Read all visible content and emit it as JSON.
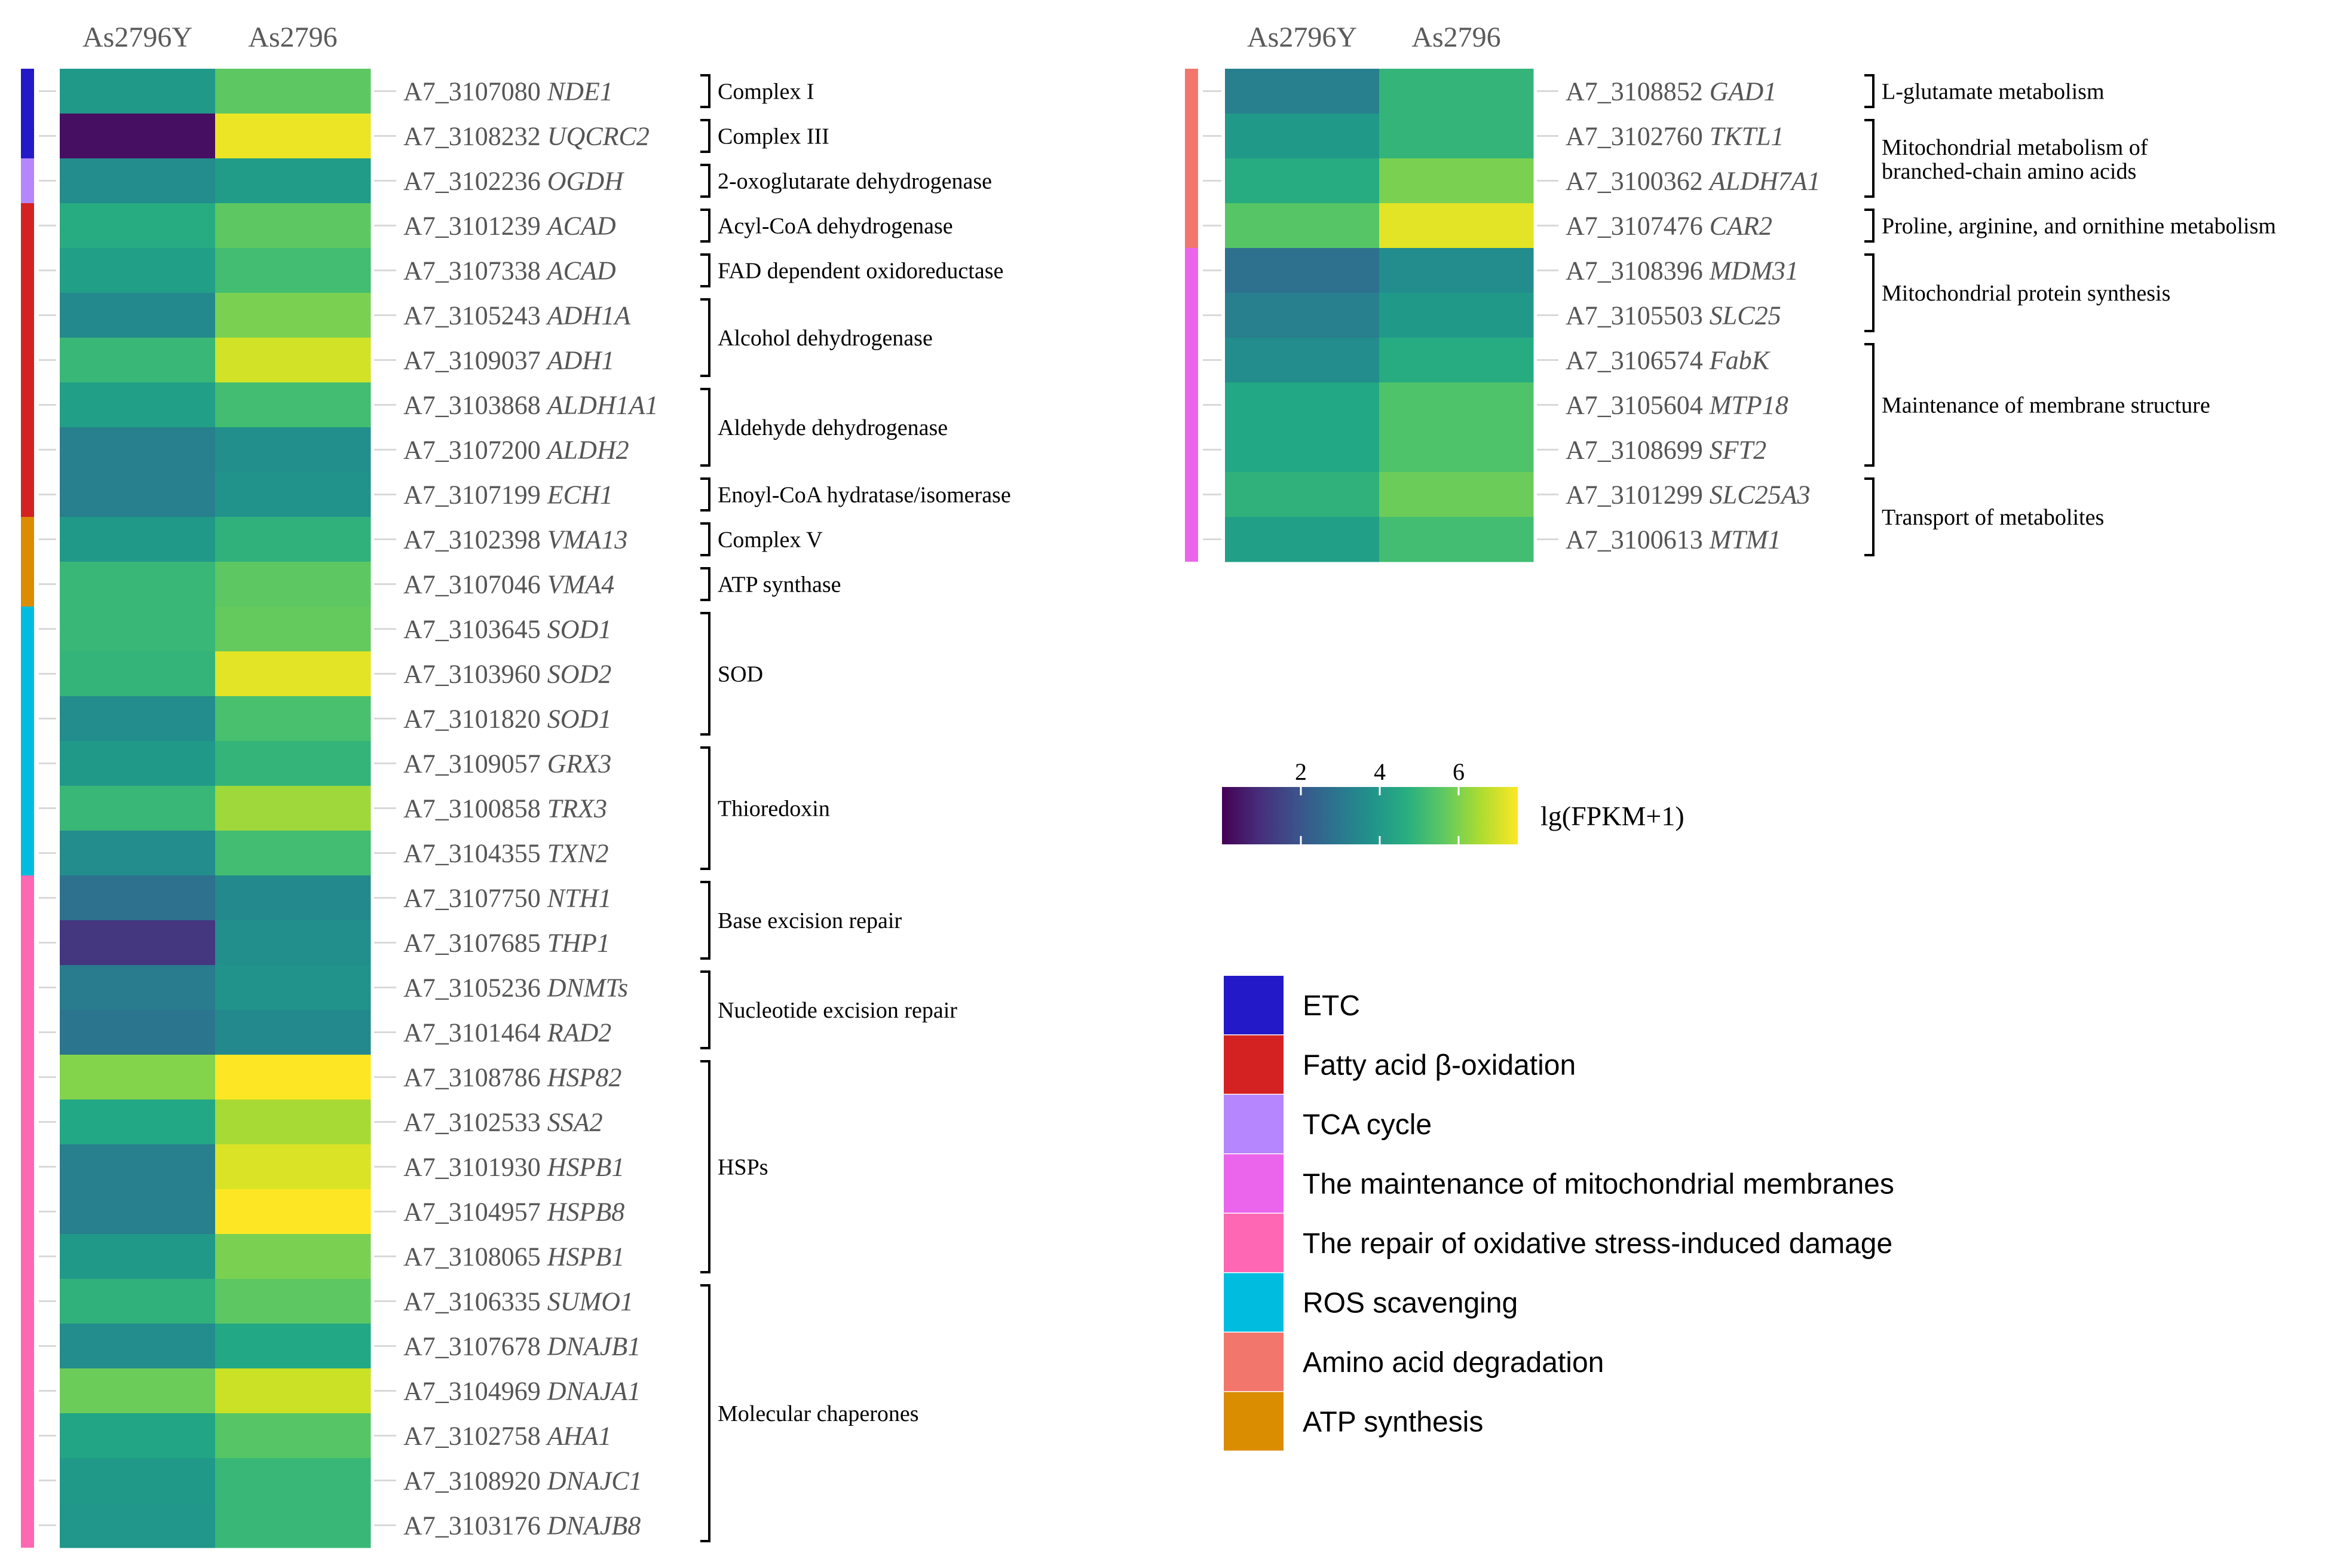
{
  "chart_data": {
    "type": "heatmap",
    "columns": [
      "As2796Y",
      "As2796"
    ],
    "value_label": "lg(FPKM+1)",
    "value_range": [
      0,
      7.5
    ],
    "colorbar_ticks": [
      2,
      4,
      6
    ],
    "left_panel": {
      "rows": [
        {
          "id": "A7_3107080",
          "gene": "NDE1",
          "values": [
            4.0,
            5.6
          ]
        },
        {
          "id": "A7_3108232",
          "gene": "UQCRC2",
          "values": [
            0.3,
            7.3
          ]
        },
        {
          "id": "A7_3102236",
          "gene": "OGDH",
          "values": [
            3.6,
            4.1
          ]
        },
        {
          "id": "A7_3101239",
          "gene": "ACAD",
          "values": [
            4.6,
            5.6
          ]
        },
        {
          "id": "A7_3107338",
          "gene": "ACAD",
          "values": [
            4.2,
            5.2
          ]
        },
        {
          "id": "A7_3105243",
          "gene": "ADH1A",
          "values": [
            3.5,
            6.0
          ]
        },
        {
          "id": "A7_3109037",
          "gene": "ADH1",
          "values": [
            5.0,
            7.0
          ]
        },
        {
          "id": "A7_3103868",
          "gene": "ALDH1A1",
          "values": [
            4.2,
            5.2
          ]
        },
        {
          "id": "A7_3107200",
          "gene": "ALDH2",
          "values": [
            3.2,
            3.7
          ]
        },
        {
          "id": "A7_3107199",
          "gene": "ECH1",
          "values": [
            3.2,
            3.8
          ]
        },
        {
          "id": "A7_3102398",
          "gene": "VMA13",
          "values": [
            4.0,
            4.8
          ]
        },
        {
          "id": "A7_3107046",
          "gene": "VMA4",
          "values": [
            5.0,
            5.6
          ]
        },
        {
          "id": "A7_3103645",
          "gene": "SOD1",
          "values": [
            5.0,
            5.7
          ]
        },
        {
          "id": "A7_3103960",
          "gene": "SOD2",
          "values": [
            4.9,
            7.2
          ]
        },
        {
          "id": "A7_3101820",
          "gene": "SOD1",
          "values": [
            3.6,
            5.3
          ]
        },
        {
          "id": "A7_3109057",
          "gene": "GRX3",
          "values": [
            4.0,
            4.9
          ]
        },
        {
          "id": "A7_3100858",
          "gene": "TRX3",
          "values": [
            5.0,
            6.4
          ]
        },
        {
          "id": "A7_3104355",
          "gene": "TXN2",
          "values": [
            3.6,
            5.2
          ]
        },
        {
          "id": "A7_3107750",
          "gene": "NTH1",
          "values": [
            2.8,
            3.5
          ]
        },
        {
          "id": "A7_3107685",
          "gene": "THP1",
          "values": [
            1.2,
            3.7
          ]
        },
        {
          "id": "A7_3105236",
          "gene": "DNMTs",
          "values": [
            3.1,
            3.8
          ]
        },
        {
          "id": "A7_3101464",
          "gene": "RAD2",
          "values": [
            2.9,
            3.5
          ]
        },
        {
          "id": "A7_3108786",
          "gene": "HSP82",
          "values": [
            6.1,
            7.5
          ]
        },
        {
          "id": "A7_3102533",
          "gene": "SSA2",
          "values": [
            4.5,
            6.5
          ]
        },
        {
          "id": "A7_3101930",
          "gene": "HSPB1",
          "values": [
            3.2,
            7.1
          ]
        },
        {
          "id": "A7_3104957",
          "gene": "HSPB8",
          "values": [
            3.2,
            7.5
          ]
        },
        {
          "id": "A7_3108065",
          "gene": "HSPB1",
          "values": [
            4.0,
            6.0
          ]
        },
        {
          "id": "A7_3106335",
          "gene": "SUMO1",
          "values": [
            4.8,
            5.6
          ]
        },
        {
          "id": "A7_3107678",
          "gene": "DNAJB1",
          "values": [
            3.6,
            4.5
          ]
        },
        {
          "id": "A7_3104969",
          "gene": "DNAJA1",
          "values": [
            5.8,
            6.9
          ]
        },
        {
          "id": "A7_3102758",
          "gene": "AHA1",
          "values": [
            4.4,
            5.5
          ]
        },
        {
          "id": "A7_3108920",
          "gene": "DNAJC1",
          "values": [
            4.0,
            5.0
          ]
        },
        {
          "id": "A7_3103176",
          "gene": "DNAJB8",
          "values": [
            3.9,
            5.0
          ]
        }
      ],
      "category_bar": [
        {
          "category": "ETC",
          "rows": 2
        },
        {
          "category": "TCA cycle",
          "rows": 1
        },
        {
          "category": "Fatty acid β-oxidation",
          "rows": 7
        },
        {
          "category": "ATP synthesis",
          "rows": 2
        },
        {
          "category": "ROS scavenging",
          "rows": 6
        },
        {
          "category": "The repair of oxidative stress-induced damage",
          "rows": 15
        }
      ],
      "groups": [
        {
          "label": "Complex I",
          "start": 0,
          "end": 0
        },
        {
          "label": "Complex III",
          "start": 1,
          "end": 1
        },
        {
          "label": "2-oxoglutarate dehydrogenase",
          "start": 2,
          "end": 2
        },
        {
          "label": "Acyl-CoA dehydrogenase",
          "start": 3,
          "end": 3
        },
        {
          "label": "FAD dependent oxidoreductase",
          "start": 4,
          "end": 4
        },
        {
          "label": "Alcohol dehydrogenase",
          "start": 5,
          "end": 6
        },
        {
          "label": "Aldehyde dehydrogenase",
          "start": 7,
          "end": 8
        },
        {
          "label": "Enoyl-CoA hydratase/isomerase",
          "start": 9,
          "end": 9
        },
        {
          "label": "Complex V",
          "start": 10,
          "end": 10
        },
        {
          "label": "ATP synthase",
          "start": 11,
          "end": 11
        },
        {
          "label": "SOD",
          "start": 12,
          "end": 14
        },
        {
          "label": "Thioredoxin",
          "start": 15,
          "end": 17
        },
        {
          "label": "Base excision repair",
          "start": 18,
          "end": 19
        },
        {
          "label": "Nucleotide excision repair",
          "start": 20,
          "end": 21
        },
        {
          "label": "HSPs",
          "start": 22,
          "end": 26
        },
        {
          "label": "Molecular chaperones",
          "start": 27,
          "end": 32
        }
      ]
    },
    "right_panel": {
      "rows": [
        {
          "id": "A7_3108852",
          "gene": "GAD1",
          "values": [
            3.2,
            4.9
          ]
        },
        {
          "id": "A7_3102760",
          "gene": "TKTL1",
          "values": [
            4.0,
            4.9
          ]
        },
        {
          "id": "A7_3100362",
          "gene": "ALDH7A1",
          "values": [
            4.6,
            6.0
          ]
        },
        {
          "id": "A7_3107476",
          "gene": "CAR2",
          "values": [
            5.5,
            7.2
          ]
        },
        {
          "id": "A7_3108396",
          "gene": "MDM31",
          "values": [
            2.8,
            3.6
          ]
        },
        {
          "id": "A7_3105503",
          "gene": "SLC25",
          "values": [
            3.2,
            4.0
          ]
        },
        {
          "id": "A7_3106574",
          "gene": "FabK",
          "values": [
            3.6,
            4.6
          ]
        },
        {
          "id": "A7_3105604",
          "gene": "MTP18",
          "values": [
            4.5,
            5.4
          ]
        },
        {
          "id": "A7_3108699",
          "gene": "SFT2",
          "values": [
            4.5,
            5.4
          ]
        },
        {
          "id": "A7_3101299",
          "gene": "SLC25A3",
          "values": [
            4.8,
            5.8
          ]
        },
        {
          "id": "A7_3100613",
          "gene": "MTM1",
          "values": [
            4.2,
            5.2
          ]
        }
      ],
      "category_bar": [
        {
          "category": "Amino acid degradation",
          "rows": 4
        },
        {
          "category": "The maintenance of mitochondrial membranes",
          "rows": 7
        }
      ],
      "groups": [
        {
          "label": "L-glutamate metabolism",
          "start": 0,
          "end": 0
        },
        {
          "label": "Mitochondrial metabolism of branched-chain amino acids",
          "label_lines": [
            "Mitochondrial metabolism of",
            "branched-chain amino acids"
          ],
          "start": 1,
          "end": 2
        },
        {
          "label": "Proline, arginine, and ornithine metabolism",
          "start": 3,
          "end": 3
        },
        {
          "label": "Mitochondrial protein synthesis",
          "start": 4,
          "end": 5
        },
        {
          "label": "Maintenance of membrane structure",
          "start": 6,
          "end": 8
        },
        {
          "label": "Transport of metabolites",
          "start": 9,
          "end": 10
        }
      ]
    },
    "legend": [
      {
        "label": "ETC",
        "color": "#2319c8"
      },
      {
        "label": "Fatty acid β-oxidation",
        "color": "#d42222"
      },
      {
        "label": "TCA cycle",
        "color": "#b586fd"
      },
      {
        "label": "The maintenance of mitochondrial membranes",
        "color": "#eb65ec"
      },
      {
        "label": "The repair of oxidative stress-induced damage",
        "color": "#fd67b3"
      },
      {
        "label": "ROS scavenging",
        "color": "#00bde0"
      },
      {
        "label": "Amino acid degradation",
        "color": "#f3766d"
      },
      {
        "label": "ATP synthesis",
        "color": "#da8d00"
      }
    ]
  }
}
